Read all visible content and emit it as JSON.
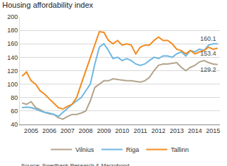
{
  "chart_data": {
    "type": "line",
    "title": "Housing affordability index",
    "source": "Source: Swedbank Research & Macrobond",
    "categories": [
      null,
      null,
      "2005",
      null,
      null,
      null,
      "2006",
      null,
      null,
      null,
      "2007",
      null,
      null,
      null,
      "2008",
      null,
      null,
      null,
      "2009",
      null,
      null,
      null,
      "2010",
      null,
      null,
      null,
      "2011",
      null,
      null,
      null,
      "2012",
      null,
      null,
      null,
      "2013",
      null,
      null,
      null,
      "2014",
      null,
      null,
      null,
      "2015",
      null
    ],
    "series": [
      {
        "name": "Vilnius",
        "color": "#b3a48c",
        "values": [
          72,
          70,
          74,
          65,
          62,
          58,
          56,
          55,
          50,
          48,
          52,
          55,
          55,
          57,
          60,
          75,
          95,
          100,
          105,
          105,
          108,
          107,
          106,
          105,
          105,
          104,
          103,
          105,
          110,
          120,
          128,
          130,
          130,
          131,
          132,
          125,
          120,
          125,
          128,
          133,
          135,
          132,
          130,
          129.2
        ]
      },
      {
        "name": "Riga",
        "color": "#6fb7e3",
        "values": [
          65,
          66,
          65,
          63,
          60,
          58,
          57,
          55,
          52,
          58,
          65,
          70,
          75,
          80,
          90,
          100,
          130,
          155,
          160,
          150,
          138,
          140,
          135,
          138,
          135,
          130,
          128,
          130,
          135,
          140,
          138,
          142,
          142,
          140,
          145,
          148,
          142,
          150,
          148,
          152,
          150,
          158,
          160,
          160.1
        ]
      },
      {
        "name": "Tallinn",
        "color": "#f28a1e",
        "values": [
          112,
          118,
          105,
          100,
          90,
          85,
          78,
          72,
          65,
          63,
          67,
          70,
          80,
          100,
          120,
          140,
          160,
          178,
          177,
          165,
          160,
          165,
          158,
          160,
          158,
          145,
          155,
          158,
          158,
          165,
          170,
          165,
          165,
          160,
          152,
          150,
          145,
          150,
          145,
          148,
          150,
          155,
          152,
          153.4
        ]
      }
    ],
    "annotations": [
      {
        "text": "160.1",
        "x": 43,
        "y": 160.1
      },
      {
        "text": "153.4",
        "x": 43,
        "y": 153.4
      },
      {
        "text": "129.2",
        "x": 43,
        "y": 129.2
      }
    ],
    "ylim": [
      40,
      200
    ],
    "yticks": [
      40,
      60,
      80,
      100,
      120,
      140,
      160,
      180,
      200
    ],
    "grid": true,
    "legend": "bottom"
  }
}
